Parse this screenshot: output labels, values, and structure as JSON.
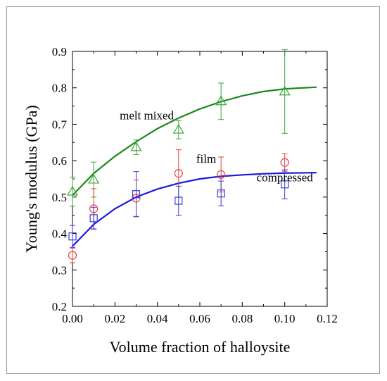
{
  "chart_data": {
    "type": "scatter",
    "title": "",
    "xlabel": "Volume fraction of halloysite",
    "ylabel": "Young's modulus (GPa)",
    "xlim": [
      0.0,
      0.12
    ],
    "ylim": [
      0.2,
      0.9
    ],
    "xticks": [
      "0.00",
      "0.02",
      "0.04",
      "0.06",
      "0.08",
      "0.10",
      "0.12"
    ],
    "yticks": [
      "0.2",
      "0.3",
      "0.4",
      "0.5",
      "0.6",
      "0.7",
      "0.8",
      "0.9"
    ],
    "grid": false,
    "series": [
      {
        "key": "melt",
        "marker": "triangle",
        "color": "#3aa63a",
        "x": [
          0.0,
          0.01,
          0.03,
          0.05,
          0.07,
          0.1
        ],
        "y": [
          0.515,
          0.548,
          0.637,
          0.685,
          0.763,
          0.79
        ],
        "err": [
          0.04,
          0.048,
          0.02,
          0.025,
          0.05,
          0.115
        ]
      },
      {
        "key": "film",
        "marker": "circle",
        "color": "#e8403a",
        "x": [
          0.0,
          0.01,
          0.03,
          0.05,
          0.07,
          0.1
        ],
        "y": [
          0.34,
          0.468,
          0.497,
          0.565,
          0.562,
          0.595
        ],
        "err": [
          0.02,
          0.055,
          0.05,
          0.065,
          0.048,
          0.024
        ]
      },
      {
        "key": "compressed",
        "marker": "square",
        "color": "#3a3ad8",
        "x": [
          0.0,
          0.01,
          0.03,
          0.05,
          0.07,
          0.1
        ],
        "y": [
          0.392,
          0.442,
          0.508,
          0.49,
          0.51,
          0.535
        ],
        "err": [
          0.03,
          0.03,
          0.062,
          0.04,
          0.034,
          0.04
        ]
      }
    ],
    "fits": [
      {
        "key": "melt_fit",
        "color": "#1a8a1a",
        "x": [
          0.0,
          0.01,
          0.02,
          0.03,
          0.04,
          0.05,
          0.06,
          0.07,
          0.08,
          0.09,
          0.1,
          0.115
        ],
        "y": [
          0.505,
          0.565,
          0.612,
          0.652,
          0.688,
          0.717,
          0.742,
          0.762,
          0.778,
          0.79,
          0.797,
          0.802
        ]
      },
      {
        "key": "compressed_fit",
        "color": "#1a1ae0",
        "x": [
          0.0,
          0.005,
          0.01,
          0.02,
          0.03,
          0.04,
          0.05,
          0.06,
          0.07,
          0.08,
          0.09,
          0.1,
          0.115
        ],
        "y": [
          0.365,
          0.395,
          0.425,
          0.468,
          0.5,
          0.522,
          0.538,
          0.55,
          0.557,
          0.561,
          0.564,
          0.566,
          0.567
        ]
      }
    ],
    "annotations": [
      {
        "text": "melt mixed",
        "x": 0.035,
        "y": 0.713
      },
      {
        "text": "film",
        "x": 0.063,
        "y": 0.594
      },
      {
        "text": "compressed",
        "x": 0.1,
        "y": 0.543
      }
    ]
  }
}
